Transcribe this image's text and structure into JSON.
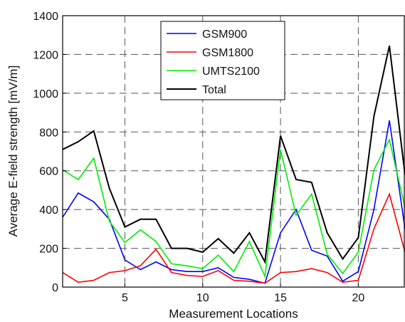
{
  "chart_data": {
    "type": "line",
    "title": "",
    "xlabel": "Measurement Locations",
    "ylabel": "Average E-field strength [mV/m]",
    "xlim": [
      1,
      23
    ],
    "ylim": [
      0,
      1400
    ],
    "xticks": [
      5,
      10,
      15,
      20
    ],
    "yticks": [
      0,
      200,
      400,
      600,
      800,
      1000,
      1200,
      1400
    ],
    "grid": true,
    "legend_position": "top-center",
    "x": [
      1,
      2,
      3,
      4,
      5,
      6,
      7,
      8,
      9,
      10,
      11,
      12,
      13,
      14,
      15,
      16,
      17,
      18,
      19,
      20,
      21,
      22,
      23
    ],
    "series": [
      {
        "name": "GSM900",
        "color": "#0000ff",
        "values": [
          360,
          485,
          440,
          350,
          140,
          90,
          130,
          90,
          80,
          80,
          100,
          50,
          40,
          20,
          280,
          400,
          190,
          160,
          30,
          80,
          400,
          860,
          300
        ]
      },
      {
        "name": "GSM1800",
        "color": "#ff0000",
        "values": [
          75,
          25,
          35,
          75,
          85,
          110,
          195,
          75,
          60,
          55,
          85,
          35,
          30,
          20,
          75,
          80,
          95,
          75,
          25,
          35,
          300,
          480,
          180
        ]
      },
      {
        "name": "UMTS2100",
        "color": "#00ee00",
        "values": [
          605,
          555,
          665,
          340,
          230,
          295,
          235,
          120,
          110,
          95,
          165,
          80,
          235,
          55,
          710,
          370,
          480,
          170,
          70,
          180,
          605,
          760,
          410
        ]
      },
      {
        "name": "Total",
        "color": "#000000",
        "values": [
          710,
          750,
          805,
          510,
          310,
          350,
          350,
          200,
          200,
          180,
          250,
          175,
          280,
          130,
          780,
          555,
          540,
          280,
          145,
          255,
          880,
          1245,
          580
        ]
      }
    ]
  }
}
